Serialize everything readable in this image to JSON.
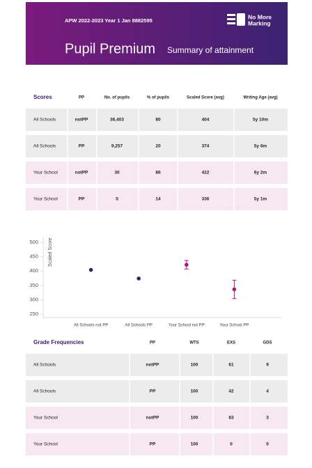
{
  "header": {
    "code": "APW 2022-2023 Year 1 Jan 8882595",
    "logo": [
      "No More",
      "Marking"
    ],
    "title": "Pupil Premium",
    "subtitle": "Summary of attainment"
  },
  "scores_table": {
    "columns": [
      "Scores",
      "PP",
      "No. of pupils",
      "% of pupils",
      "Scaled Score (avg)",
      "Writing Age (avg)"
    ],
    "rows": [
      [
        "All Schools",
        "notPP",
        "36,403",
        "80",
        "404",
        "5y 10m"
      ],
      [
        "All Schools",
        "PP",
        "9,257",
        "20",
        "374",
        "5y 6m"
      ],
      [
        "Your School",
        "notPP",
        "30",
        "86",
        "422",
        "6y 2m"
      ],
      [
        "Your School",
        "PP",
        "5",
        "14",
        "336",
        "5y 1m"
      ]
    ]
  },
  "chart_data": {
    "type": "scatter",
    "y_label": "Scaled Score",
    "categories": [
      "All Schools not PP",
      "All Schools PP",
      "Your School not PP",
      "Your School PP"
    ],
    "values": [
      404,
      374,
      422,
      336
    ],
    "errors": [
      null,
      null,
      15,
      32
    ],
    "colors": [
      "#3a1d6e",
      "#3a1d6e",
      "#b3177e",
      "#b3177e"
    ],
    "ylim": [
      250,
      500
    ],
    "yticks": [
      250,
      300,
      350,
      400,
      450,
      500
    ]
  },
  "grade_table": {
    "columns": [
      "Grade Frequencies",
      "PP",
      "WTS",
      "EXS",
      "GDS"
    ],
    "rows": [
      [
        "All Schools",
        "notPP",
        "100",
        "61",
        "9"
      ],
      [
        "All Schools",
        "PP",
        "100",
        "42",
        "4"
      ],
      [
        "Your School",
        "notPP",
        "100",
        "83",
        "3"
      ],
      [
        "Your School",
        "PP",
        "100",
        "0",
        "0"
      ]
    ]
  }
}
